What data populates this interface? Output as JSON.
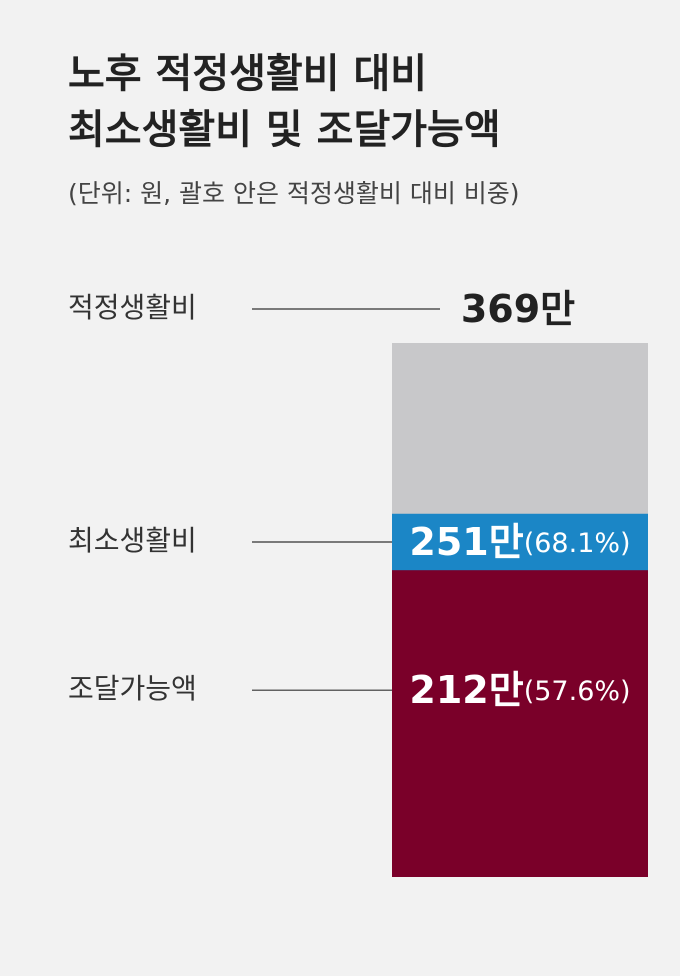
{
  "chart_data": {
    "type": "overlap-bar",
    "title_lines": [
      "노후 적정생활비 대비",
      "최소생활비 및 조달가능액"
    ],
    "subtitle": "(단위: 원, 괄호 안은 적정생활비 대비 비중)",
    "categories": [
      "적정생활비",
      "최소생활비",
      "조달가능액"
    ],
    "values": [
      369,
      251,
      212
    ],
    "value_labels": [
      "369만",
      "251만",
      "212만"
    ],
    "share_labels": [
      null,
      "(68.1%)",
      "(57.6%)"
    ],
    "colors": [
      "#c8c8ca",
      "#1b86c6",
      "#7a0029"
    ],
    "ylim": [
      0,
      369
    ]
  }
}
